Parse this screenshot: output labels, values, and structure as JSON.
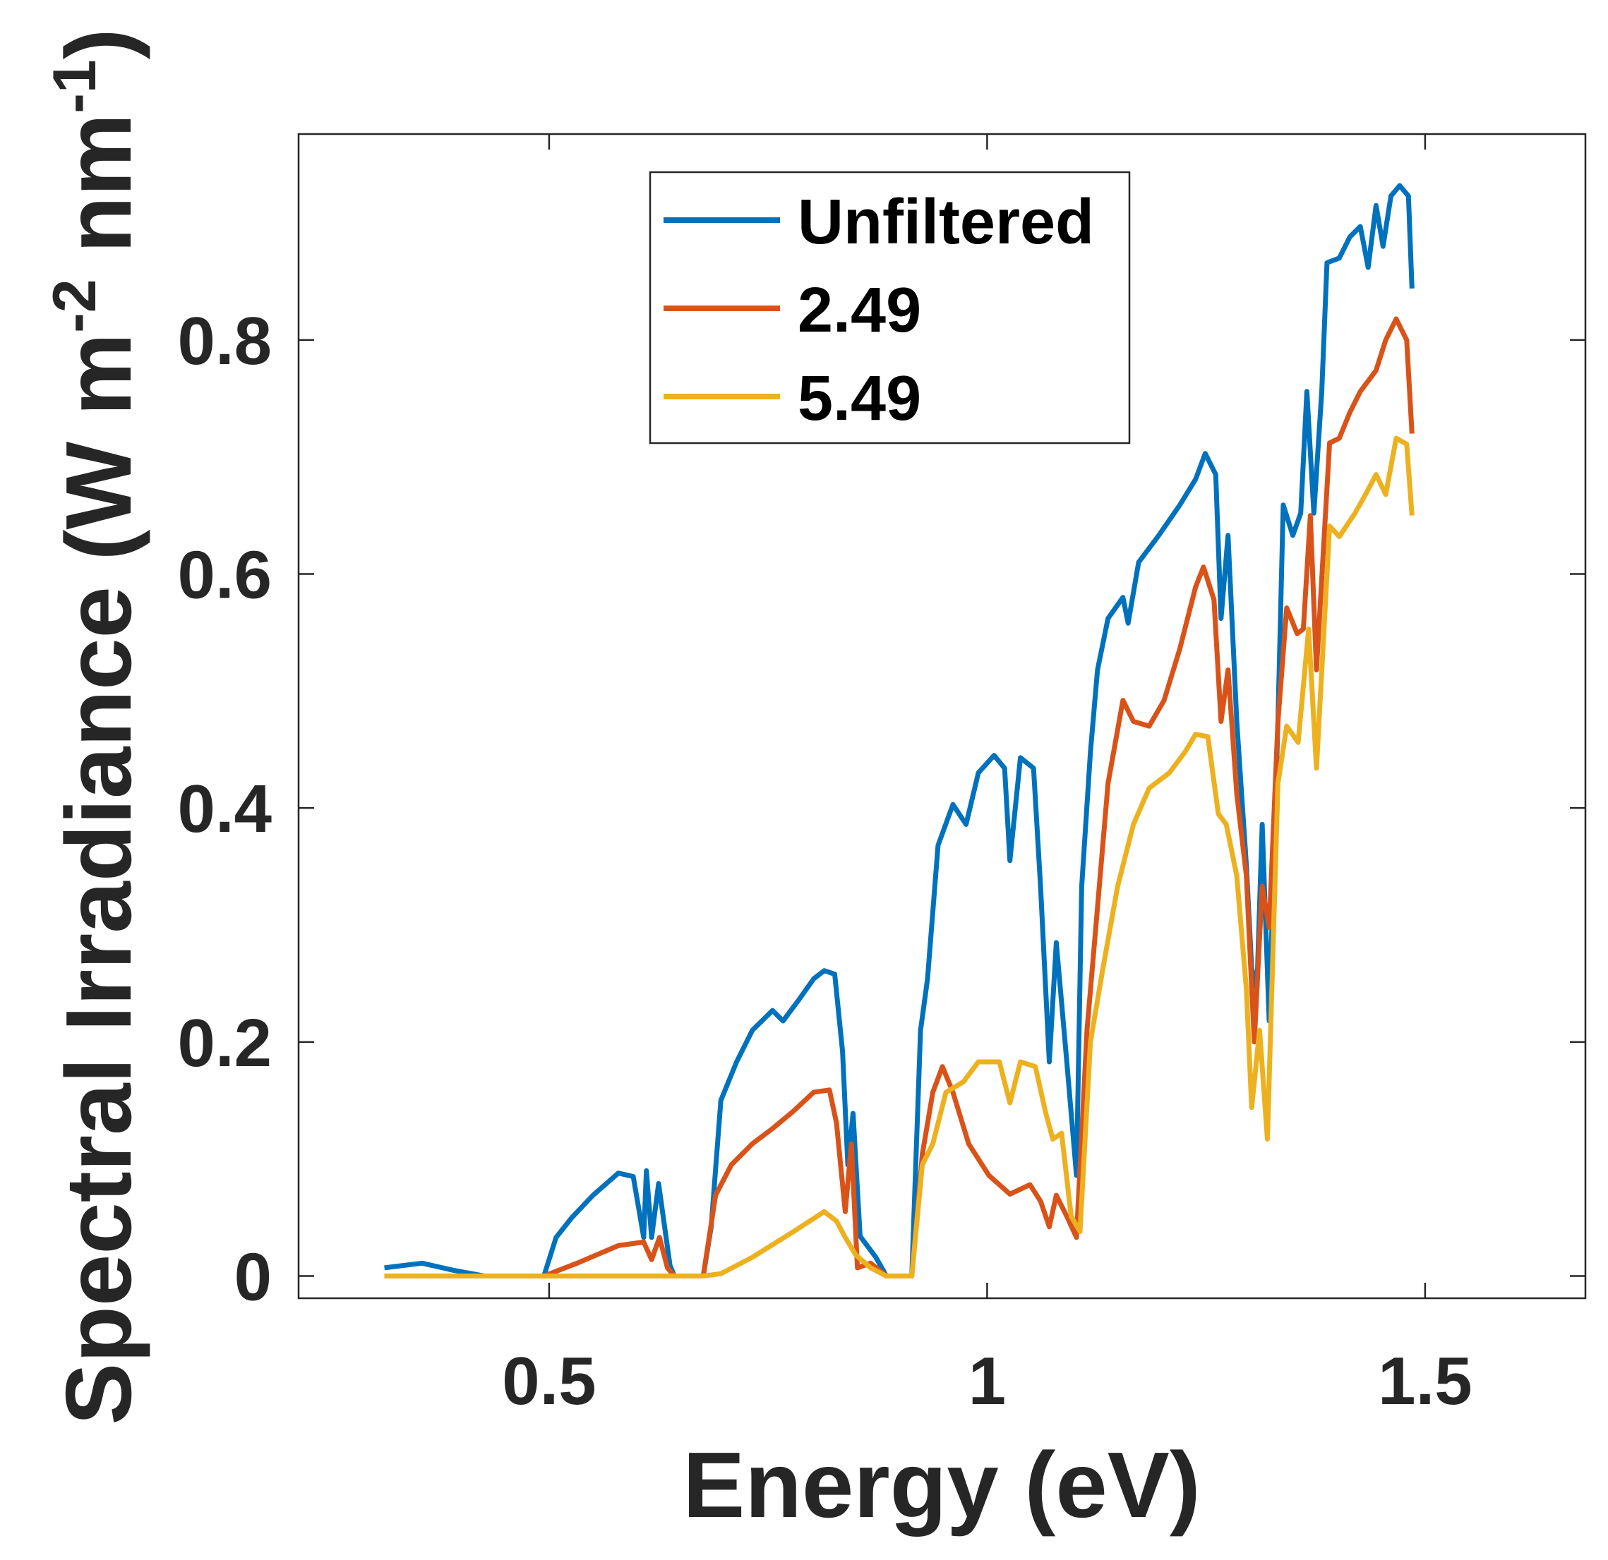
{
  "chart_data": {
    "type": "line",
    "title": "",
    "xlabel": "Energy (eV)",
    "ylabel_parts": [
      "Spectral Irradiance (W m",
      "-2",
      " nm",
      "-1",
      ")"
    ],
    "xlim": [
      0.214,
      1.683
    ],
    "ylim": [
      -0.019,
      0.976
    ],
    "xticks": [
      0.5,
      1,
      1.5
    ],
    "xtick_labels": [
      "0.5",
      "1",
      "1.5"
    ],
    "yticks": [
      0,
      0.2,
      0.4,
      0.6,
      0.8
    ],
    "ytick_labels": [
      "0",
      "0.2",
      "0.4",
      "0.6",
      "0.8"
    ],
    "grid": false,
    "legend_position": "top-center",
    "series": [
      {
        "name": "Unfiltered",
        "color": "#0072BD",
        "points": [
          [
            0.312,
            0.007
          ],
          [
            0.355,
            0.011
          ],
          [
            0.39,
            0.005
          ],
          [
            0.426,
            0
          ],
          [
            0.494,
            0
          ],
          [
            0.508,
            0.033
          ],
          [
            0.526,
            0.05
          ],
          [
            0.55,
            0.069
          ],
          [
            0.579,
            0.088
          ],
          [
            0.596,
            0.085
          ],
          [
            0.608,
            0.033
          ],
          [
            0.611,
            0.09
          ],
          [
            0.617,
            0.033
          ],
          [
            0.625,
            0.079
          ],
          [
            0.638,
            0.009
          ],
          [
            0.643,
            0
          ],
          [
            0.676,
            0
          ],
          [
            0.685,
            0.042
          ],
          [
            0.696,
            0.15
          ],
          [
            0.714,
            0.183
          ],
          [
            0.732,
            0.21
          ],
          [
            0.755,
            0.227
          ],
          [
            0.767,
            0.218
          ],
          [
            0.785,
            0.236
          ],
          [
            0.802,
            0.254
          ],
          [
            0.814,
            0.261
          ],
          [
            0.826,
            0.258
          ],
          [
            0.835,
            0.192
          ],
          [
            0.841,
            0.095
          ],
          [
            0.847,
            0.139
          ],
          [
            0.855,
            0.034
          ],
          [
            0.873,
            0.016
          ],
          [
            0.885,
            0
          ],
          [
            0.914,
            0
          ],
          [
            0.924,
            0.21
          ],
          [
            0.932,
            0.254
          ],
          [
            0.944,
            0.368
          ],
          [
            0.961,
            0.403
          ],
          [
            0.976,
            0.386
          ],
          [
            0.99,
            0.43
          ],
          [
            1.008,
            0.445
          ],
          [
            1.02,
            0.434
          ],
          [
            1.026,
            0.355
          ],
          [
            1.038,
            0.443
          ],
          [
            1.053,
            0.434
          ],
          [
            1.061,
            0.333
          ],
          [
            1.071,
            0.183
          ],
          [
            1.079,
            0.285
          ],
          [
            1.091,
            0.183
          ],
          [
            1.102,
            0.086
          ],
          [
            1.108,
            0.333
          ],
          [
            1.118,
            0.448
          ],
          [
            1.126,
            0.518
          ],
          [
            1.138,
            0.562
          ],
          [
            1.155,
            0.58
          ],
          [
            1.161,
            0.558
          ],
          [
            1.173,
            0.61
          ],
          [
            1.196,
            0.633
          ],
          [
            1.22,
            0.659
          ],
          [
            1.238,
            0.681
          ],
          [
            1.249,
            0.703
          ],
          [
            1.261,
            0.685
          ],
          [
            1.267,
            0.562
          ],
          [
            1.275,
            0.633
          ],
          [
            1.285,
            0.474
          ],
          [
            1.296,
            0.351
          ],
          [
            1.302,
            0.263
          ],
          [
            1.308,
            0.245
          ],
          [
            1.314,
            0.386
          ],
          [
            1.322,
            0.218
          ],
          [
            1.332,
            0.474
          ],
          [
            1.338,
            0.659
          ],
          [
            1.349,
            0.633
          ],
          [
            1.358,
            0.652
          ],
          [
            1.365,
            0.756
          ],
          [
            1.373,
            0.652
          ],
          [
            1.382,
            0.756
          ],
          [
            1.388,
            0.866
          ],
          [
            1.402,
            0.87
          ],
          [
            1.414,
            0.888
          ],
          [
            1.426,
            0.897
          ],
          [
            1.435,
            0.862
          ],
          [
            1.444,
            0.915
          ],
          [
            1.452,
            0.88
          ],
          [
            1.461,
            0.923
          ],
          [
            1.471,
            0.932
          ],
          [
            1.481,
            0.923
          ],
          [
            1.485,
            0.844
          ]
        ]
      },
      {
        "name": "2.49",
        "color": "#D95319",
        "points": [
          [
            0.312,
            0
          ],
          [
            0.494,
            0
          ],
          [
            0.532,
            0.011
          ],
          [
            0.579,
            0.026
          ],
          [
            0.608,
            0.029
          ],
          [
            0.617,
            0.014
          ],
          [
            0.626,
            0.033
          ],
          [
            0.635,
            0.007
          ],
          [
            0.643,
            0
          ],
          [
            0.676,
            0
          ],
          [
            0.69,
            0.069
          ],
          [
            0.708,
            0.095
          ],
          [
            0.732,
            0.113
          ],
          [
            0.755,
            0.126
          ],
          [
            0.779,
            0.141
          ],
          [
            0.802,
            0.157
          ],
          [
            0.82,
            0.159
          ],
          [
            0.828,
            0.131
          ],
          [
            0.838,
            0.055
          ],
          [
            0.845,
            0.113
          ],
          [
            0.852,
            0.007
          ],
          [
            0.867,
            0.011
          ],
          [
            0.885,
            0
          ],
          [
            0.914,
            0
          ],
          [
            0.926,
            0.104
          ],
          [
            0.938,
            0.157
          ],
          [
            0.949,
            0.179
          ],
          [
            0.961,
            0.157
          ],
          [
            0.979,
            0.113
          ],
          [
            1.002,
            0.086
          ],
          [
            1.026,
            0.07
          ],
          [
            1.049,
            0.078
          ],
          [
            1.061,
            0.064
          ],
          [
            1.071,
            0.042
          ],
          [
            1.079,
            0.069
          ],
          [
            1.091,
            0.051
          ],
          [
            1.102,
            0.033
          ],
          [
            1.114,
            0.21
          ],
          [
            1.126,
            0.315
          ],
          [
            1.138,
            0.421
          ],
          [
            1.155,
            0.492
          ],
          [
            1.167,
            0.474
          ],
          [
            1.185,
            0.47
          ],
          [
            1.202,
            0.492
          ],
          [
            1.22,
            0.536
          ],
          [
            1.238,
            0.589
          ],
          [
            1.247,
            0.606
          ],
          [
            1.259,
            0.578
          ],
          [
            1.267,
            0.474
          ],
          [
            1.275,
            0.518
          ],
          [
            1.285,
            0.412
          ],
          [
            1.296,
            0.342
          ],
          [
            1.305,
            0.2
          ],
          [
            1.314,
            0.333
          ],
          [
            1.322,
            0.298
          ],
          [
            1.332,
            0.474
          ],
          [
            1.342,
            0.571
          ],
          [
            1.354,
            0.549
          ],
          [
            1.361,
            0.553
          ],
          [
            1.369,
            0.65
          ],
          [
            1.376,
            0.518
          ],
          [
            1.391,
            0.712
          ],
          [
            1.402,
            0.716
          ],
          [
            1.414,
            0.738
          ],
          [
            1.426,
            0.756
          ],
          [
            1.444,
            0.774
          ],
          [
            1.455,
            0.8
          ],
          [
            1.467,
            0.818
          ],
          [
            1.479,
            0.8
          ],
          [
            1.485,
            0.72
          ]
        ]
      },
      {
        "name": "5.49",
        "color": "#EDB120",
        "points": [
          [
            0.312,
            0
          ],
          [
            0.676,
            0
          ],
          [
            0.696,
            0.002
          ],
          [
            0.732,
            0.016
          ],
          [
            0.779,
            0.038
          ],
          [
            0.814,
            0.055
          ],
          [
            0.828,
            0.047
          ],
          [
            0.838,
            0.033
          ],
          [
            0.85,
            0.018
          ],
          [
            0.867,
            0.007
          ],
          [
            0.885,
            0
          ],
          [
            0.914,
            0
          ],
          [
            0.926,
            0.095
          ],
          [
            0.938,
            0.113
          ],
          [
            0.953,
            0.157
          ],
          [
            0.973,
            0.166
          ],
          [
            0.99,
            0.183
          ],
          [
            1.014,
            0.183
          ],
          [
            1.026,
            0.148
          ],
          [
            1.038,
            0.183
          ],
          [
            1.055,
            0.179
          ],
          [
            1.067,
            0.139
          ],
          [
            1.075,
            0.117
          ],
          [
            1.085,
            0.122
          ],
          [
            1.096,
            0.051
          ],
          [
            1.106,
            0.038
          ],
          [
            1.118,
            0.2
          ],
          [
            1.132,
            0.262
          ],
          [
            1.149,
            0.333
          ],
          [
            1.167,
            0.386
          ],
          [
            1.185,
            0.417
          ],
          [
            1.208,
            0.43
          ],
          [
            1.226,
            0.448
          ],
          [
            1.238,
            0.463
          ],
          [
            1.252,
            0.461
          ],
          [
            1.264,
            0.395
          ],
          [
            1.273,
            0.386
          ],
          [
            1.285,
            0.342
          ],
          [
            1.296,
            0.245
          ],
          [
            1.302,
            0.144
          ],
          [
            1.311,
            0.21
          ],
          [
            1.32,
            0.117
          ],
          [
            1.332,
            0.421
          ],
          [
            1.342,
            0.47
          ],
          [
            1.355,
            0.456
          ],
          [
            1.367,
            0.553
          ],
          [
            1.376,
            0.434
          ],
          [
            1.391,
            0.641
          ],
          [
            1.402,
            0.632
          ],
          [
            1.42,
            0.652
          ],
          [
            1.432,
            0.668
          ],
          [
            1.444,
            0.685
          ],
          [
            1.455,
            0.668
          ],
          [
            1.467,
            0.716
          ],
          [
            1.479,
            0.711
          ],
          [
            1.485,
            0.65
          ]
        ]
      }
    ]
  }
}
